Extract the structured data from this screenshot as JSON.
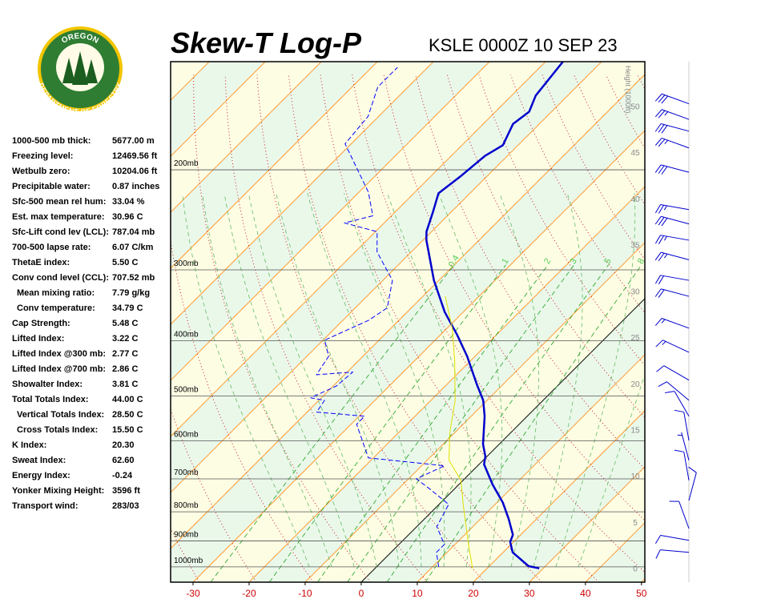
{
  "header": {
    "title": "Skew-T Log-P",
    "station": "KSLE 0000Z 10 SEP 23"
  },
  "logo": {
    "top": "OREGON",
    "bottom": "DEPARTMENT OF FORESTRY"
  },
  "indices": [
    {
      "label": "1000-500 mb thick:",
      "value": "5677.00 m"
    },
    {
      "label": "Freezing level:",
      "value": "12469.56 ft"
    },
    {
      "label": "Wetbulb zero:",
      "value": "10204.06 ft"
    },
    {
      "label": "Precipitable water:",
      "value": "0.87 inches"
    },
    {
      "label": "Sfc-500 mean rel hum:",
      "value": "33.04 %"
    },
    {
      "label": "Est. max temperature:",
      "value": "30.96 C"
    },
    {
      "label": "Sfc-Lift cond lev (LCL):",
      "value": "787.04 mb"
    },
    {
      "label": "700-500 lapse rate:",
      "value": "6.07 C/km"
    },
    {
      "label": "ThetaE index:",
      "value": "5.50 C"
    },
    {
      "label": "Conv cond level (CCL):",
      "value": "707.52 mb"
    },
    {
      "label": "Mean mixing ratio:",
      "value": "7.79 g/kg"
    },
    {
      "label": "Conv temperature:",
      "value": "34.79 C"
    },
    {
      "label": "Cap Strength:",
      "value": "5.48 C"
    },
    {
      "label": "Lifted Index:",
      "value": "3.22 C"
    },
    {
      "label": "Lifted Index @300 mb:",
      "value": "2.77 C"
    },
    {
      "label": "Lifted Index @700 mb:",
      "value": "2.86 C"
    },
    {
      "label": "Showalter Index:",
      "value": "3.81 C"
    },
    {
      "label": "Total Totals Index:",
      "value": "44.00 C"
    },
    {
      "label": "Vertical Totals Index:",
      "value": "28.50 C"
    },
    {
      "label": "Cross Totals Index:",
      "value": "15.50 C"
    },
    {
      "label": "K Index:",
      "value": "20.30"
    },
    {
      "label": "Sweat Index:",
      "value": "62.60"
    },
    {
      "label": "Energy Index:",
      "value": "-0.24"
    },
    {
      "label": "Yonker Mixing Height:",
      "value": "3596 ft"
    },
    {
      "label": "Transport wind:",
      "value": "283/03"
    }
  ],
  "chart_data": {
    "type": "skewt",
    "xlim": [
      -34,
      50.6
    ],
    "xticks": [
      -30,
      -20,
      -10,
      0,
      10,
      20,
      30,
      40,
      50
    ],
    "ylim": [
      1064,
      129
    ],
    "ylog": true,
    "yticks": [
      {
        "value": 200,
        "label": "200mb"
      },
      {
        "value": 300,
        "label": "300mb"
      },
      {
        "value": 400,
        "label": "400mb"
      },
      {
        "value": 500,
        "label": "500mb"
      },
      {
        "value": 600,
        "label": "600mb"
      },
      {
        "value": 700,
        "label": "700mb"
      },
      {
        "value": 800,
        "label": "800mb"
      },
      {
        "value": 900,
        "label": "900mb"
      },
      {
        "value": 1000,
        "label": "1000mb"
      }
    ],
    "y2label": "Height (1000ft)",
    "y2lim": [
      -1.5,
      54.8
    ],
    "y2ticks": [
      0,
      5,
      10,
      15,
      20,
      25,
      30,
      35,
      40,
      45,
      50
    ],
    "mixing_ratios": [
      0.4,
      1,
      2,
      3,
      5,
      8
    ],
    "series": [
      {
        "color": "#0000cc",
        "width": 2.5,
        "dashed": false,
        "pressures": [
          1006,
          997,
          943,
          904,
          878,
          823,
          771,
          716,
          660,
          639,
          608,
          543,
          509,
          477,
          426,
          390,
          356,
          313,
          266,
          257,
          237,
          220,
          205,
          189,
          181,
          166,
          158,
          148,
          129
        ],
        "values": [
          29.3,
          27.0,
          21.7,
          19.4,
          18.6,
          15.0,
          11.1,
          6.0,
          0.9,
          -0.3,
          -2.9,
          -7.6,
          -10.7,
          -14.7,
          -21.4,
          -27.1,
          -33.3,
          -40.9,
          -49.4,
          -50.9,
          -53.3,
          -55.6,
          -54.7,
          -54.0,
          -52.7,
          -54.7,
          -54.0,
          -55.7,
          -56.9
        ]
      },
      {
        "color": "#0000ff",
        "width": 1,
        "dashed": true,
        "pressures": [
          1000,
          943,
          913,
          850,
          776,
          727,
          700,
          664,
          656,
          643,
          561,
          543,
          534,
          509,
          504,
          480,
          454,
          459,
          426,
          399,
          368,
          350,
          313,
          279,
          257,
          248,
          241,
          219,
          180,
          161,
          143,
          132
        ],
        "values": [
          11.1,
          8.1,
          8.1,
          3.6,
          1.7,
          -4.7,
          -8.6,
          -5.9,
          -11.4,
          -20.9,
          -29.0,
          -29.0,
          -38.3,
          -39.0,
          -41.9,
          -39.4,
          -39.0,
          -45.0,
          -46.1,
          -49.7,
          -45.4,
          -44.3,
          -48.3,
          -56.1,
          -59.7,
          -67.1,
          -63.3,
          -68.3,
          -81.1,
          -81.9,
          -85.4,
          -85.4
        ]
      },
      {
        "color": "#e0e000",
        "width": 1,
        "dashed": false,
        "pressures": [
          1006,
          913,
          776,
          704,
          649,
          580,
          509,
          433,
          380,
          334
        ],
        "values": [
          17.4,
          12.4,
          4.3,
          -0.4,
          -6.1,
          -10.9,
          -15.7,
          -22.9,
          -29.1,
          -36.0
        ]
      }
    ],
    "winds": {
      "color": "#0000cc",
      "pressure": [
        153,
        163,
        171,
        183,
        202,
        235,
        249,
        266,
        288,
        313,
        334,
        380,
        419,
        469,
        509,
        543,
        599,
        649,
        704,
        764,
        856,
        898,
        943
      ],
      "direction": [
        290,
        290,
        285,
        290,
        285,
        280,
        285,
        280,
        285,
        280,
        285,
        290,
        295,
        300,
        310,
        330,
        350,
        345,
        350,
        15,
        340,
        280,
        275
      ],
      "speed": [
        30,
        25,
        30,
        25,
        30,
        25,
        30,
        25,
        25,
        20,
        20,
        15,
        15,
        10,
        10,
        10,
        10,
        5,
        10,
        10,
        10,
        10,
        10
      ]
    }
  }
}
